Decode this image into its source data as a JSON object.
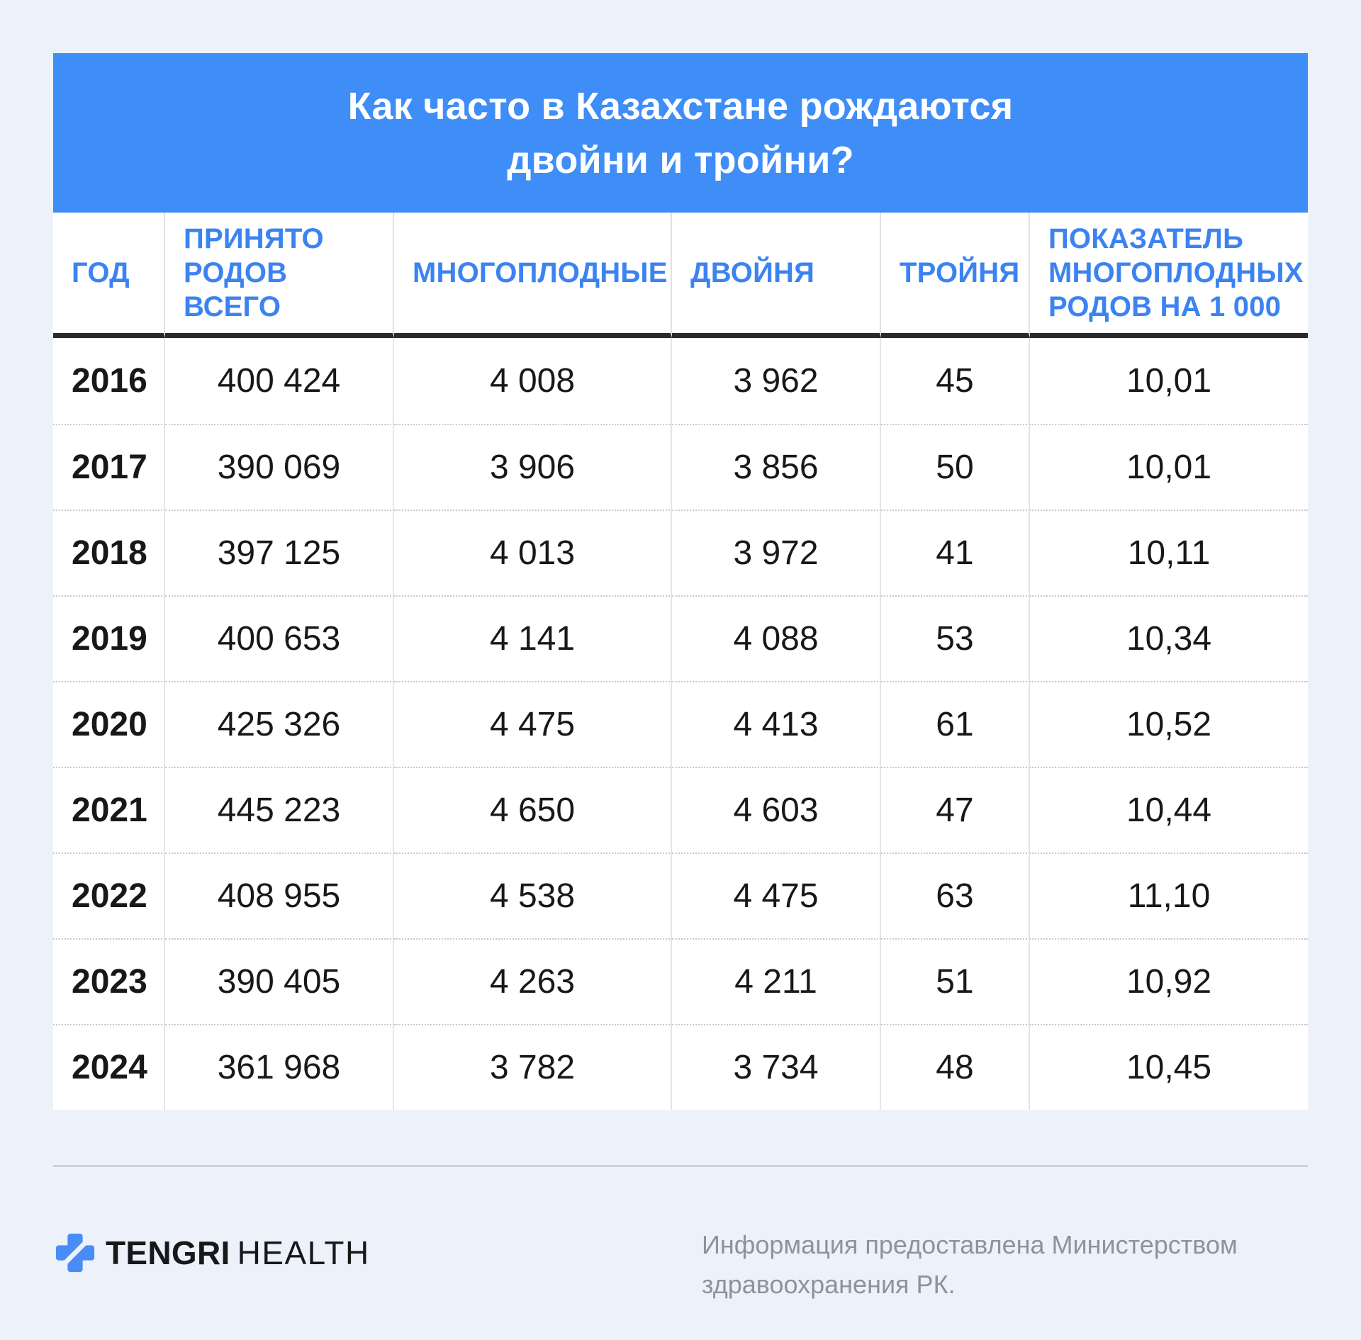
{
  "title": {
    "line1": "Как часто в Казахстане рождаются",
    "line2": "двойни и тройни?"
  },
  "colors": {
    "banner_blue": "#3F8DF7",
    "column_header_blue": "#3C83F2",
    "page_background": "#EDF2FA",
    "logo_blue": "#4A8CF7",
    "data_text": "#17181A",
    "note_gray": "#8E939A"
  },
  "chart_data": {
    "type": "table",
    "title": "Как часто в Казахстане рождаются двойни и тройни?",
    "columns": [
      "ГОД",
      "ПРИНЯТО РОДОВ ВСЕГО",
      "МНОГОПЛОДНЫЕ",
      "ДВОЙНЯ",
      "ТРОЙНЯ",
      "ПОКАЗАТЕЛЬ МНОГОПЛОДНЫХ РОДОВ НА 1 000"
    ],
    "rows": [
      [
        "2016",
        "400 424",
        "4 008",
        "3 962",
        "45",
        "10,01"
      ],
      [
        "2017",
        "390 069",
        "3 906",
        "3 856",
        "50",
        "10,01"
      ],
      [
        "2018",
        "397 125",
        "4 013",
        "3 972",
        "41",
        "10,11"
      ],
      [
        "2019",
        "400 653",
        "4 141",
        "4 088",
        "53",
        "10,34"
      ],
      [
        "2020",
        "425 326",
        "4 475",
        "4 413",
        "61",
        "10,52"
      ],
      [
        "2021",
        "445 223",
        "4 650",
        "4 603",
        "47",
        "10,44"
      ],
      [
        "2022",
        "408 955",
        "4 538",
        "4 475",
        "63",
        "11,10"
      ],
      [
        "2023",
        "390 405",
        "4 263",
        "4 211",
        "51",
        "10,92"
      ],
      [
        "2024",
        "361 968",
        "3 782",
        "3 734",
        "48",
        "10,45"
      ]
    ],
    "source_note": "Информация предоставлена Министерством здравоохранения РК."
  },
  "footer": {
    "brand_bold": "TENGRI",
    "brand_light": "HEALTH",
    "note_line1": "Информация предоставлена Министерством",
    "note_line2": "здравоохранения РК."
  }
}
